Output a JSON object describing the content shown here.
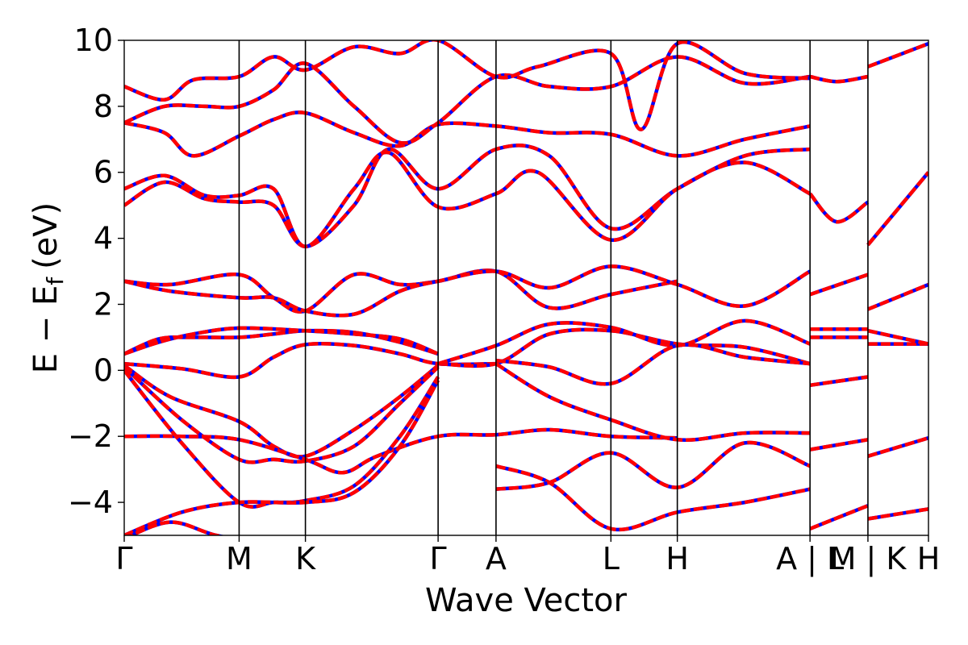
{
  "chart_data": {
    "type": "line",
    "xlabel": "Wave Vector",
    "ylabel": "E − E",
    "ylabel_subscript": "f",
    "ylabel_unit": "(eV)",
    "ylim": [
      -5,
      10
    ],
    "yticks": [
      {
        "value": -4,
        "label": "−4"
      },
      {
        "value": -2,
        "label": "−2"
      },
      {
        "value": 0,
        "label": "0"
      },
      {
        "value": 2,
        "label": "2"
      },
      {
        "value": 4,
        "label": "4"
      },
      {
        "value": 6,
        "label": "6"
      },
      {
        "value": 8,
        "label": "8"
      },
      {
        "value": 10,
        "label": "10"
      }
    ],
    "kpath_labels": [
      "Γ",
      "M",
      "K",
      "Γ",
      "A",
      "L",
      "H",
      "A | L",
      "M | K",
      "H"
    ],
    "kpath_positions": [
      0,
      1.0,
      1.577,
      2.732,
      3.236,
      4.236,
      4.814,
      5.969,
      6.473,
      7.0
    ],
    "grid": false,
    "legend": "none",
    "colors": {
      "band_primary": "#ff0000",
      "band_secondary": "#0000ff",
      "frame": "#000000"
    },
    "series": [
      {
        "points": [
          [
            0,
            0.5
          ],
          [
            0.3,
            0.95
          ],
          [
            0.6,
            1.0
          ],
          [
            1.0,
            1.0
          ],
          [
            1.3,
            1.1
          ],
          [
            1.577,
            1.2
          ],
          [
            2.0,
            1.15
          ],
          [
            2.4,
            0.85
          ],
          [
            2.732,
            0.5
          ]
        ]
      },
      {
        "points": [
          [
            0,
            0.5
          ],
          [
            0.3,
            0.85
          ],
          [
            0.6,
            1.1
          ],
          [
            1.0,
            1.28
          ],
          [
            1.577,
            1.2
          ],
          [
            2.0,
            1.1
          ],
          [
            2.4,
            0.95
          ],
          [
            2.732,
            0.5
          ]
        ]
      },
      {
        "points": [
          [
            0,
            0.2
          ],
          [
            0.5,
            0.05
          ],
          [
            1.0,
            -0.2
          ],
          [
            1.3,
            0.4
          ],
          [
            1.577,
            0.78
          ],
          [
            2.0,
            0.75
          ],
          [
            2.4,
            0.5
          ],
          [
            2.732,
            0.2
          ],
          [
            3.236,
            0.2
          ]
        ]
      },
      {
        "points": [
          [
            0,
            0.15
          ],
          [
            0.4,
            -0.8
          ],
          [
            1.0,
            -1.55
          ],
          [
            1.3,
            -2.3
          ],
          [
            1.577,
            -2.6
          ],
          [
            2.0,
            -1.8
          ],
          [
            2.4,
            -0.8
          ],
          [
            2.732,
            0.15
          ]
        ]
      },
      {
        "points": [
          [
            0,
            0.1
          ],
          [
            0.5,
            -1.5
          ],
          [
            1.0,
            -2.7
          ],
          [
            1.3,
            -2.7
          ],
          [
            1.577,
            -2.75
          ],
          [
            2.0,
            -2.3
          ],
          [
            2.4,
            -1.0
          ],
          [
            2.732,
            0.1
          ]
        ]
      },
      {
        "points": [
          [
            0,
            -2.0
          ],
          [
            0.5,
            -2.0
          ],
          [
            1.0,
            -2.1
          ],
          [
            1.577,
            -2.7
          ],
          [
            1.9,
            -3.1
          ],
          [
            2.2,
            -2.6
          ],
          [
            2.732,
            -2.0
          ],
          [
            3.236,
            -1.95
          ],
          [
            3.7,
            -1.8
          ],
          [
            4.236,
            -2.0
          ],
          [
            4.814,
            -2.05
          ]
        ]
      },
      {
        "points": [
          [
            0,
            0.0
          ],
          [
            0.5,
            -2.2
          ],
          [
            1.0,
            -4.0
          ],
          [
            1.3,
            -4.0
          ],
          [
            1.577,
            -3.95
          ],
          [
            2.0,
            -3.5
          ],
          [
            2.4,
            -2.0
          ],
          [
            2.732,
            -0.2
          ]
        ]
      },
      {
        "points": [
          [
            0,
            -5.0
          ],
          [
            0.5,
            -4.3
          ],
          [
            1.0,
            -4.0
          ],
          [
            1.577,
            -4.0
          ],
          [
            2.0,
            -3.7
          ],
          [
            2.4,
            -2.3
          ],
          [
            2.732,
            -0.3
          ]
        ]
      },
      {
        "points": [
          [
            0,
            -5.1
          ],
          [
            0.4,
            -4.6
          ],
          [
            0.8,
            -5.0
          ],
          [
            1.2,
            -5.2
          ],
          [
            1.577,
            -5.2
          ]
        ]
      },
      {
        "points": [
          [
            0,
            2.7
          ],
          [
            0.4,
            2.6
          ],
          [
            1.0,
            2.9
          ],
          [
            1.3,
            2.2
          ],
          [
            1.577,
            1.8
          ],
          [
            2.0,
            2.9
          ],
          [
            2.4,
            2.6
          ],
          [
            2.732,
            2.7
          ],
          [
            3.236,
            3.0
          ],
          [
            3.7,
            1.9
          ],
          [
            4.236,
            2.3
          ],
          [
            4.814,
            2.7
          ]
        ]
      },
      {
        "points": [
          [
            0,
            2.7
          ],
          [
            0.4,
            2.4
          ],
          [
            1.0,
            2.2
          ],
          [
            1.3,
            2.2
          ],
          [
            1.577,
            1.8
          ],
          [
            2.0,
            1.7
          ],
          [
            2.4,
            2.4
          ],
          [
            2.732,
            2.7
          ],
          [
            3.236,
            3.0
          ],
          [
            3.7,
            2.5
          ],
          [
            4.236,
            3.15
          ],
          [
            4.814,
            2.6
          ],
          [
            5.4,
            1.95
          ],
          [
            5.969,
            3.0
          ]
        ]
      },
      {
        "points": [
          [
            0,
            5.0
          ],
          [
            0.35,
            5.7
          ],
          [
            0.7,
            5.2
          ],
          [
            1.0,
            5.1
          ],
          [
            1.3,
            5.0
          ],
          [
            1.577,
            3.75
          ],
          [
            2.0,
            5.0
          ],
          [
            2.3,
            6.7
          ],
          [
            2.732,
            5.5
          ],
          [
            3.236,
            6.7
          ],
          [
            3.7,
            6.5
          ],
          [
            4.236,
            4.3
          ],
          [
            4.814,
            5.5
          ],
          [
            5.4,
            6.5
          ],
          [
            5.969,
            6.7
          ]
        ]
      },
      {
        "points": [
          [
            0,
            5.5
          ],
          [
            0.35,
            5.9
          ],
          [
            0.7,
            5.3
          ],
          [
            1.0,
            5.3
          ],
          [
            1.3,
            5.5
          ],
          [
            1.577,
            3.75
          ],
          [
            2.0,
            5.5
          ],
          [
            2.3,
            6.6
          ],
          [
            2.732,
            4.95
          ],
          [
            3.236,
            5.35
          ],
          [
            3.6,
            6.0
          ],
          [
            4.236,
            3.95
          ],
          [
            4.814,
            5.5
          ],
          [
            5.4,
            6.3
          ],
          [
            5.969,
            5.35
          ]
        ]
      },
      {
        "points": [
          [
            0,
            7.5
          ],
          [
            0.35,
            7.2
          ],
          [
            0.6,
            6.5
          ],
          [
            1.0,
            7.1
          ],
          [
            1.3,
            7.6
          ],
          [
            1.577,
            7.8
          ],
          [
            2.0,
            7.2
          ],
          [
            2.4,
            6.8
          ],
          [
            2.732,
            7.45
          ],
          [
            3.236,
            7.4
          ],
          [
            3.7,
            7.2
          ],
          [
            4.236,
            7.15
          ],
          [
            4.814,
            6.5
          ],
          [
            5.4,
            7.0
          ],
          [
            5.969,
            7.4
          ]
        ]
      },
      {
        "points": [
          [
            0,
            7.5
          ],
          [
            0.35,
            8.0
          ],
          [
            0.7,
            8.0
          ],
          [
            1.0,
            8.0
          ],
          [
            1.3,
            8.5
          ],
          [
            1.577,
            9.3
          ],
          [
            2.0,
            8.0
          ],
          [
            2.4,
            6.9
          ],
          [
            2.732,
            7.5
          ],
          [
            3.236,
            8.9
          ],
          [
            3.7,
            8.6
          ],
          [
            4.236,
            8.6
          ],
          [
            4.814,
            9.5
          ],
          [
            5.4,
            8.7
          ],
          [
            5.969,
            8.9
          ]
        ]
      },
      {
        "points": [
          [
            0,
            8.6
          ],
          [
            0.35,
            8.2
          ],
          [
            0.6,
            8.8
          ],
          [
            1.0,
            8.9
          ],
          [
            1.3,
            9.5
          ],
          [
            1.577,
            9.1
          ],
          [
            2.0,
            9.8
          ],
          [
            2.4,
            9.6
          ],
          [
            2.732,
            10.0
          ],
          [
            3.236,
            8.9
          ],
          [
            3.6,
            9.2
          ],
          [
            4.236,
            9.6
          ],
          [
            4.5,
            7.3
          ],
          [
            4.814,
            9.9
          ],
          [
            5.4,
            9.0
          ],
          [
            5.969,
            8.85
          ]
        ]
      },
      {
        "points": [
          [
            2.732,
            0.2
          ],
          [
            3.236,
            0.2
          ],
          [
            3.7,
            1.1
          ],
          [
            4.236,
            1.2
          ],
          [
            4.814,
            0.8
          ],
          [
            5.4,
            0.7
          ],
          [
            5.969,
            0.2
          ]
        ]
      },
      {
        "points": [
          [
            2.732,
            0.2
          ],
          [
            3.236,
            0.75
          ],
          [
            3.7,
            1.4
          ],
          [
            4.236,
            1.3
          ],
          [
            4.814,
            0.75
          ],
          [
            5.4,
            1.5
          ],
          [
            5.969,
            0.8
          ]
        ]
      },
      {
        "points": [
          [
            3.236,
            0.2
          ],
          [
            3.7,
            -0.8
          ],
          [
            4.236,
            -1.5
          ],
          [
            4.814,
            -2.1
          ],
          [
            5.4,
            -1.9
          ],
          [
            5.969,
            -1.9
          ]
        ]
      },
      {
        "points": [
          [
            3.236,
            0.3
          ],
          [
            3.7,
            0.1
          ],
          [
            4.236,
            -0.4
          ],
          [
            4.814,
            0.75
          ],
          [
            5.4,
            0.4
          ],
          [
            5.969,
            0.2
          ]
        ]
      },
      {
        "points": [
          [
            3.236,
            -2.9
          ],
          [
            3.7,
            -3.4
          ],
          [
            4.236,
            -4.8
          ],
          [
            4.814,
            -4.3
          ],
          [
            5.4,
            -4.0
          ],
          [
            5.969,
            -3.6
          ]
        ]
      },
      {
        "points": [
          [
            3.236,
            -3.6
          ],
          [
            3.7,
            -3.4
          ],
          [
            4.236,
            -2.5
          ],
          [
            4.814,
            -3.55
          ],
          [
            5.4,
            -2.2
          ],
          [
            5.969,
            -2.9
          ]
        ]
      },
      {
        "points": [
          [
            5.969,
            5.35
          ],
          [
            6.2,
            4.5
          ],
          [
            6.473,
            5.1
          ]
        ]
      },
      {
        "points": [
          [
            5.969,
            8.9
          ],
          [
            6.2,
            8.75
          ],
          [
            6.473,
            8.9
          ]
        ]
      },
      {
        "points": [
          [
            5.969,
            1.25
          ],
          [
            6.473,
            1.25
          ]
        ]
      },
      {
        "points": [
          [
            5.969,
            1.0
          ],
          [
            6.473,
            1.0
          ]
        ]
      },
      {
        "points": [
          [
            5.969,
            -0.45
          ],
          [
            6.473,
            -0.2
          ]
        ]
      },
      {
        "points": [
          [
            5.969,
            -2.4
          ],
          [
            6.473,
            -2.1
          ]
        ]
      },
      {
        "points": [
          [
            5.969,
            -4.8
          ],
          [
            6.473,
            -4.1
          ]
        ]
      },
      {
        "points": [
          [
            5.969,
            2.3
          ],
          [
            6.473,
            2.9
          ]
        ]
      },
      {
        "points": [
          [
            6.473,
            0.8
          ],
          [
            7.0,
            0.8
          ]
        ]
      },
      {
        "points": [
          [
            6.473,
            1.2
          ],
          [
            7.0,
            0.8
          ]
        ]
      },
      {
        "points": [
          [
            6.473,
            1.85
          ],
          [
            7.0,
            2.6
          ]
        ]
      },
      {
        "points": [
          [
            6.473,
            -2.6
          ],
          [
            7.0,
            -2.05
          ]
        ]
      },
      {
        "points": [
          [
            6.473,
            -4.5
          ],
          [
            7.0,
            -4.2
          ]
        ]
      },
      {
        "points": [
          [
            6.473,
            3.8
          ],
          [
            7.0,
            6.0
          ]
        ]
      },
      {
        "points": [
          [
            6.473,
            9.2
          ],
          [
            7.0,
            9.9
          ]
        ]
      }
    ]
  }
}
